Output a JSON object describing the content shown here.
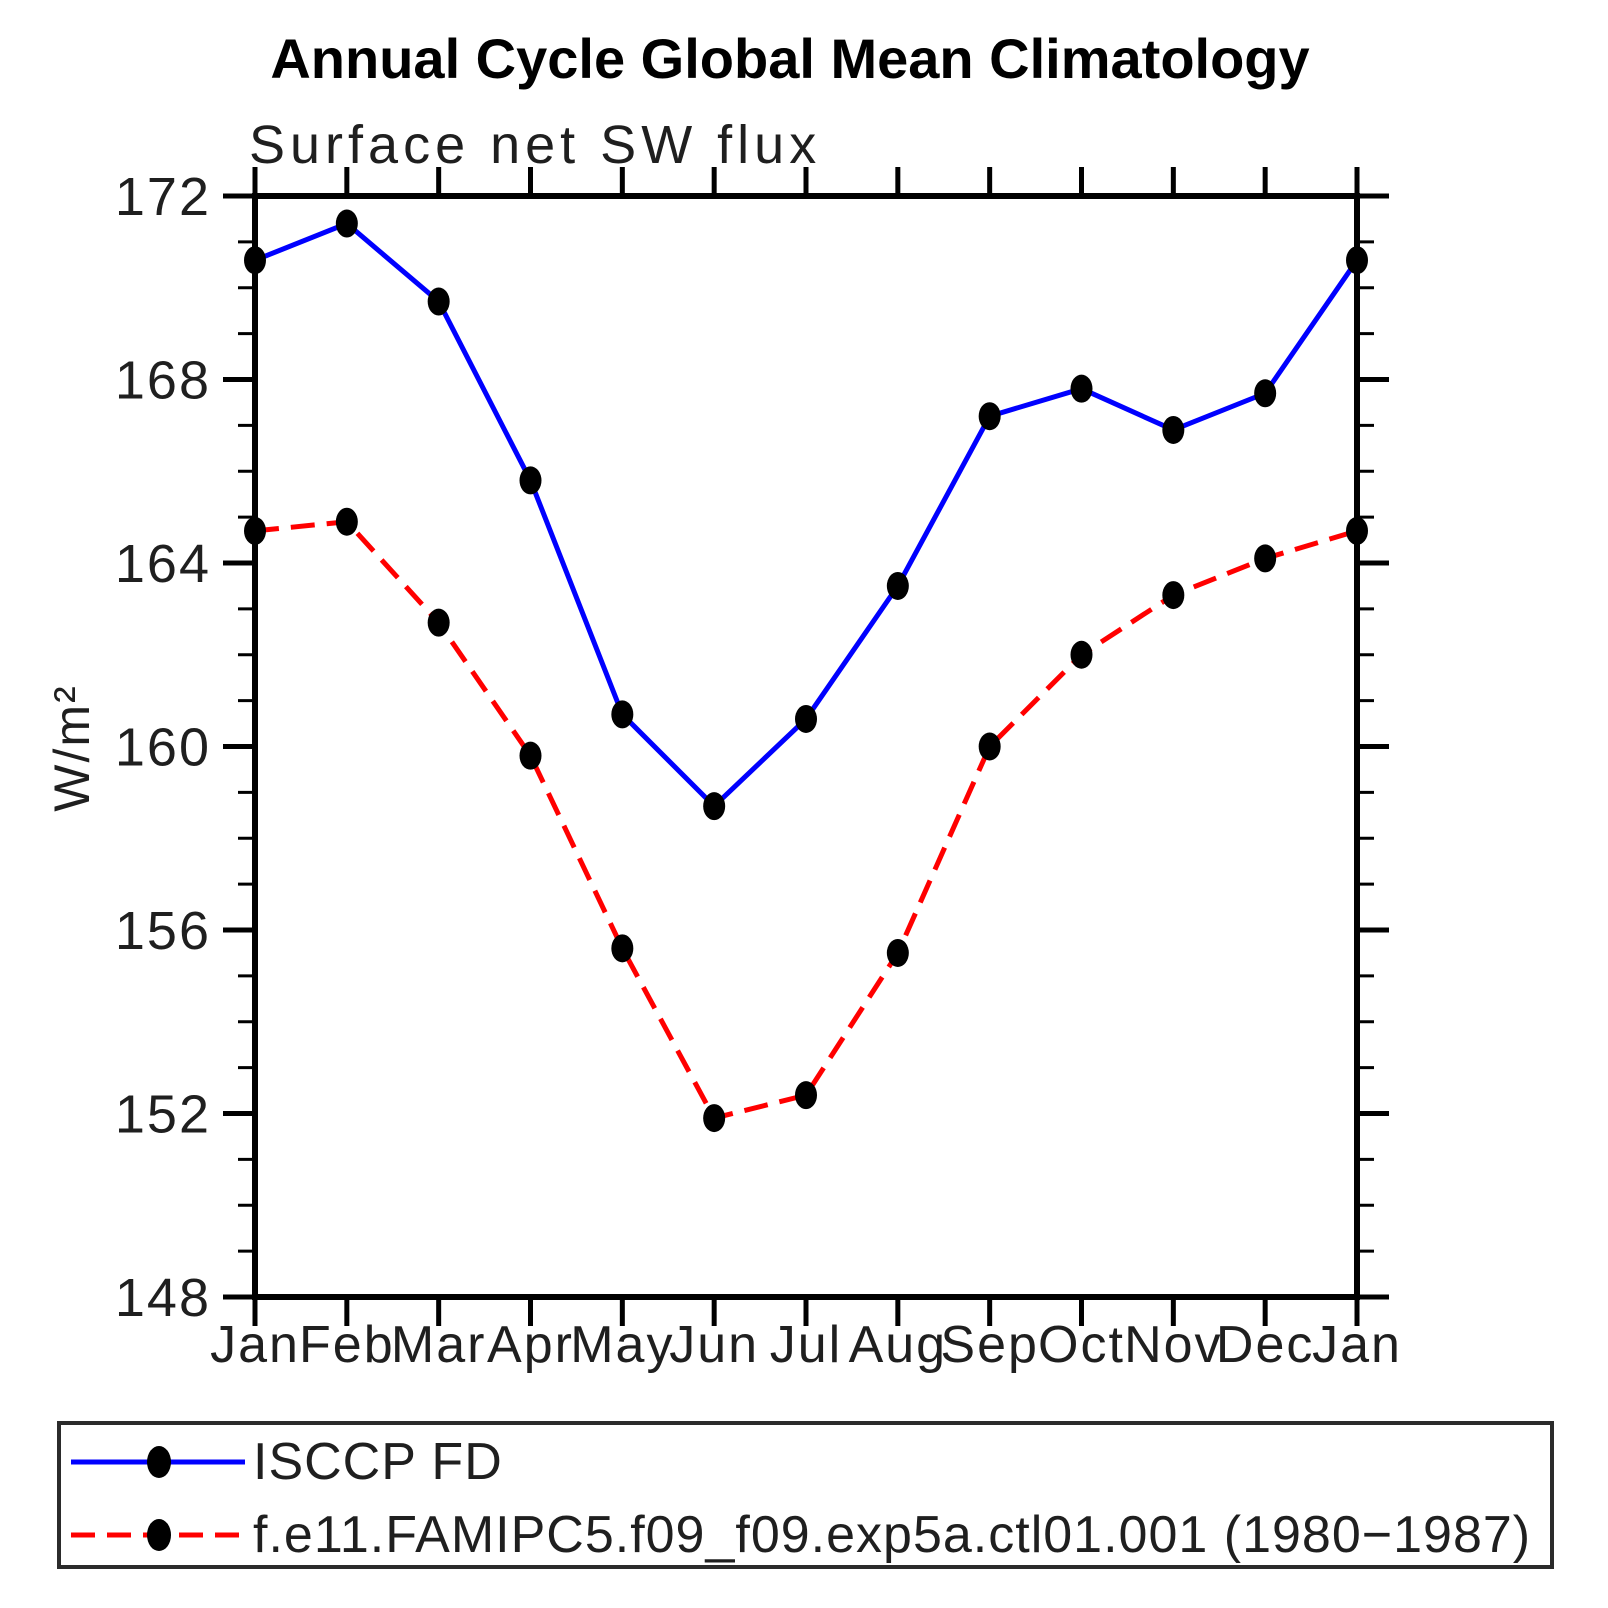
{
  "chart": {
    "title": "Annual Cycle Global Mean Climatology",
    "subtitle": "Surface net SW flux",
    "ylabel": "W/m²"
  },
  "legend": {
    "items": [
      {
        "label": "ISCCP FD"
      },
      {
        "label": "f.e11.FAMIPC5.f09_f09.exp5a.ctl01.001 (1980−1987)"
      }
    ]
  },
  "chart_data": {
    "type": "line",
    "title": "Annual Cycle Global Mean Climatology",
    "subtitle": "Surface net SW flux",
    "xlabel": "",
    "ylabel": "W/m²",
    "categories": [
      "Jan",
      "Feb",
      "Mar",
      "Apr",
      "May",
      "Jun",
      "Jul",
      "Aug",
      "Sep",
      "Oct",
      "Nov",
      "Dec",
      "Jan"
    ],
    "series": [
      {
        "name": "ISCCP FD",
        "color": "#0000ff",
        "style": "solid",
        "marker_color": "#000000",
        "values": [
          170.6,
          171.4,
          169.7,
          165.8,
          160.7,
          158.7,
          160.6,
          163.5,
          167.2,
          167.8,
          166.9,
          167.7,
          170.6
        ]
      },
      {
        "name": "f.e11.FAMIPC5.f09_f09.exp5a.ctl01.001 (1980−1987)",
        "color": "#ff0000",
        "style": "dashed",
        "marker_color": "#000000",
        "values": [
          164.7,
          164.9,
          162.7,
          159.8,
          155.6,
          151.9,
          152.4,
          155.5,
          160.0,
          162.0,
          163.3,
          164.1,
          164.7
        ]
      }
    ],
    "ylim": [
      148,
      172
    ],
    "yticks_major": [
      148,
      152,
      156,
      160,
      164,
      168,
      172
    ],
    "ytick_minor_step": 1,
    "grid": false,
    "legend_position": "bottom-box",
    "frame_color": "#000000"
  }
}
